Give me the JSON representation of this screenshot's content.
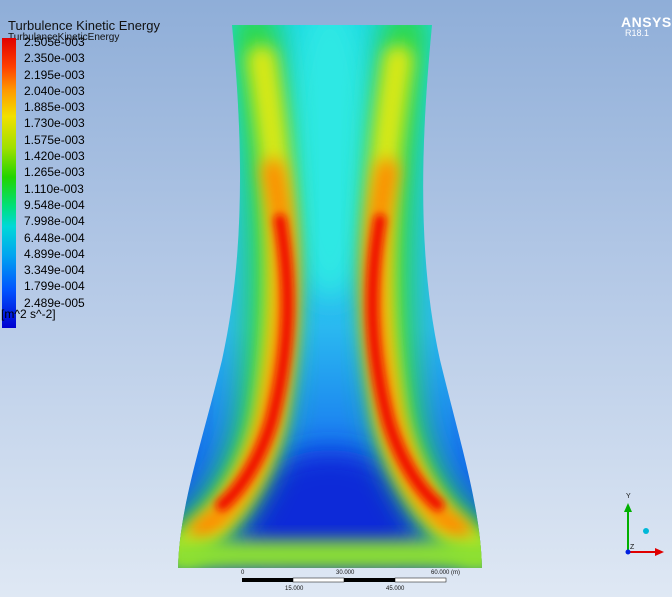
{
  "legend": {
    "title": "Turbulence Kinetic Energy",
    "subtitle": "TurbulanceKineticEnergy",
    "ticks": [
      "2.505e-003",
      "2.350e-003",
      "2.195e-003",
      "2.040e-003",
      "1.885e-003",
      "1.730e-003",
      "1.575e-003",
      "1.420e-003",
      "1.265e-003",
      "1.110e-003",
      "9.548e-004",
      "7.998e-004",
      "6.448e-004",
      "4.899e-004",
      "3.349e-004",
      "1.799e-004",
      "2.489e-005"
    ],
    "unit": "[m^2 s^-2]"
  },
  "logo": {
    "brand": "ANSYS",
    "version": "R18.1"
  },
  "scale": {
    "top_labels": [
      "0",
      "30.000",
      "60.000 (m)"
    ],
    "bottom_labels": [
      "15.000",
      "45.000"
    ]
  },
  "triad": {
    "y": "Y",
    "z": "Z"
  },
  "colors": {
    "max": "#e00000",
    "high": "#ff9900",
    "mid": "#22d400",
    "low": "#00d8d8",
    "min": "#0000d0"
  }
}
